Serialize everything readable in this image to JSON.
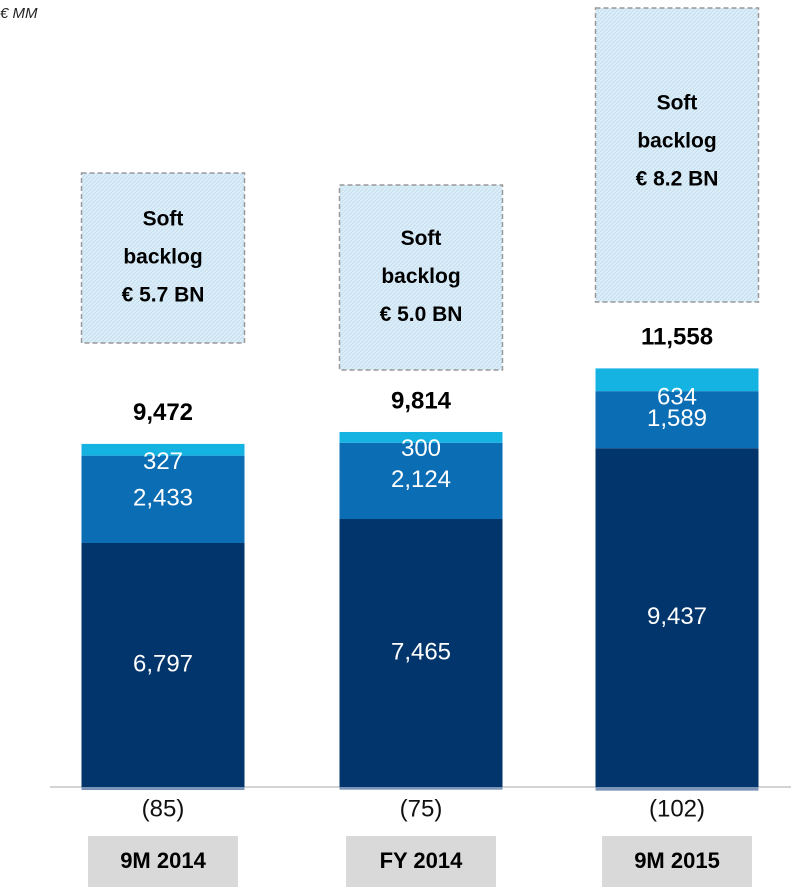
{
  "chart_data": {
    "type": "stacked-bar",
    "unit_label": "€ MM",
    "categories": [
      "9M 2014",
      "FY 2014",
      "9M 2015"
    ],
    "series": [
      {
        "color": "#7b95b8",
        "values": [
          -85,
          -75,
          -102
        ],
        "value_labels": [
          "(85)",
          "(75)",
          "(102)"
        ]
      },
      {
        "color": "#02356b",
        "values": [
          6797,
          7465,
          9437
        ],
        "value_labels": [
          "6,797",
          "7,465",
          "9,437"
        ]
      },
      {
        "color": "#0b6db3",
        "values": [
          2433,
          2124,
          1589
        ],
        "value_labels": [
          "2,433",
          "2,124",
          "1,589"
        ]
      },
      {
        "color": "#14b3e1",
        "values": [
          327,
          300,
          634
        ],
        "value_labels": [
          "327",
          "300",
          "634"
        ]
      }
    ],
    "totals": [
      9472,
      9814,
      11558
    ],
    "total_labels": [
      "9,472",
      "9,814",
      "11,558"
    ],
    "annotations": [
      [
        "Soft",
        "backlog",
        "€ 5.7 BN"
      ],
      [
        "Soft",
        "backlog",
        "€ 5.0 BN"
      ],
      [
        "Soft",
        "backlog",
        "€ 8.2 BN"
      ]
    ]
  }
}
